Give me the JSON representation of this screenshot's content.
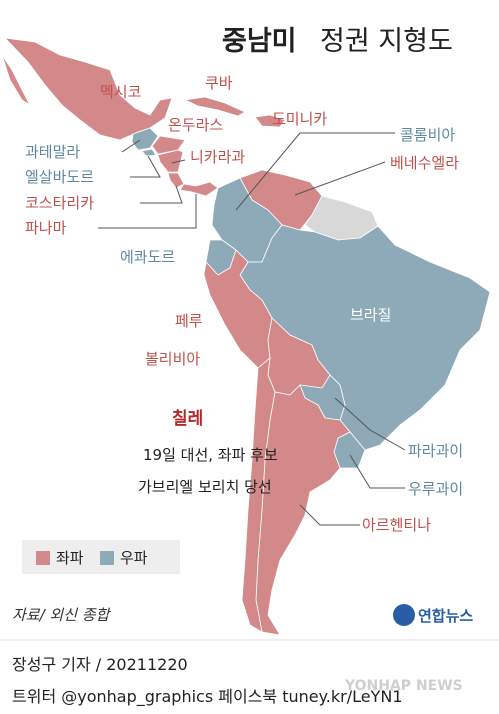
{
  "title": {
    "bold": "중남미",
    "rest": "정권 지형도"
  },
  "legend": [
    {
      "label": "좌파",
      "color": "#d3898a"
    },
    {
      "label": "우파",
      "color": "#8ea9b7"
    }
  ],
  "countries": [
    {
      "label": "멕시코",
      "color": "#d3898a"
    },
    {
      "label": "쿠바",
      "color": "#d3898a"
    },
    {
      "label": "온두라스",
      "color": "#d3898a"
    },
    {
      "label": "도미니카",
      "color": "#d3898a"
    },
    {
      "label": "과테말라",
      "color": "#8ea9b7"
    },
    {
      "label": "엘살바도르",
      "color": "#8ea9b7"
    },
    {
      "label": "니카라과",
      "color": "#d3898a"
    },
    {
      "label": "코스타리카",
      "color": "#d3898a"
    },
    {
      "label": "파나마",
      "color": "#d3898a"
    },
    {
      "label": "콜롬비아",
      "color": "#8ea9b7"
    },
    {
      "label": "베네수엘라",
      "color": "#d3898a"
    },
    {
      "label": "에콰도르",
      "color": "#8ea9b7"
    },
    {
      "label": "브라질",
      "color": "#8ea9b7"
    },
    {
      "label": "페루",
      "color": "#d3898a"
    },
    {
      "label": "볼리비아",
      "color": "#d3898a"
    },
    {
      "label": "칠레",
      "color": "#d3898a"
    },
    {
      "label": "파라과이",
      "color": "#8ea9b7"
    },
    {
      "label": "우루과이",
      "color": "#8ea9b7"
    },
    {
      "label": "아르헨티나",
      "color": "#d3898a"
    }
  ],
  "annotation": [
    "19일 대선, 좌파 후보",
    "가브리엘 보리치 당선"
  ],
  "source": "자료/ 외신 종합",
  "logo": "연합뉴스",
  "footer": [
    "장성구 기자 / 20211220",
    "트위터 @yonhap_graphics  페이스북 tuney.kr/LeYN1"
  ],
  "watermark": "YONHAP NEWS"
}
